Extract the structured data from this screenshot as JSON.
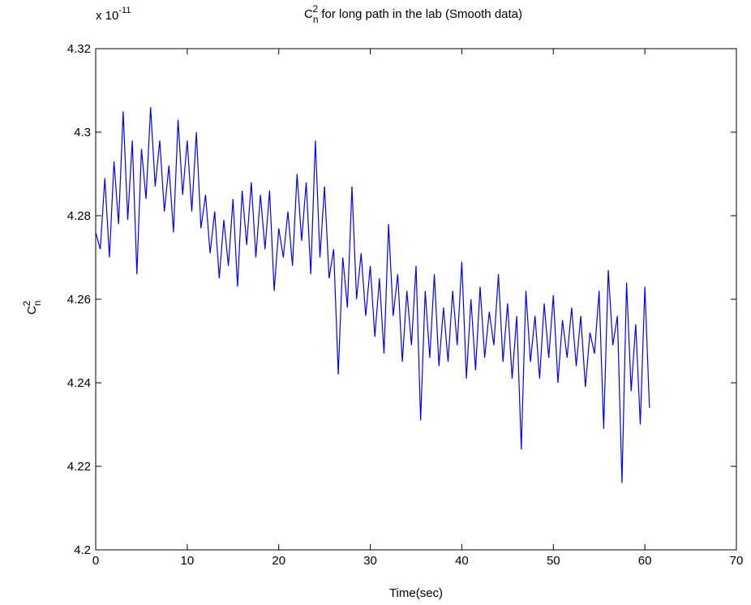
{
  "chart_data": {
    "type": "line",
    "title": {
      "symbol": "C",
      "sub": "n",
      "sup": "2",
      "text": " for long path in the lab (Smooth data)"
    },
    "y_label": {
      "symbol": "C",
      "sub": "n",
      "sup": "2"
    },
    "x_label": "Time(sec)",
    "y_exponent": {
      "base": "x 10",
      "power": "-11"
    },
    "color": "#0000ff",
    "xlim": [
      0,
      70
    ],
    "xticks": [
      0,
      10,
      20,
      30,
      40,
      50,
      60,
      70
    ],
    "ylim": [
      4.2,
      4.32
    ],
    "yticks": [
      4.2,
      4.22,
      4.24,
      4.26,
      4.28,
      4.3,
      4.32
    ],
    "x": [
      0,
      0.5,
      1,
      1.5,
      2,
      2.5,
      3,
      3.5,
      4,
      4.5,
      5,
      5.5,
      6,
      6.5,
      7,
      7.5,
      8,
      8.5,
      9,
      9.5,
      10,
      10.5,
      11,
      11.5,
      12,
      12.5,
      13,
      13.5,
      14,
      14.5,
      15,
      15.5,
      16,
      16.5,
      17,
      17.5,
      18,
      18.5,
      19,
      19.5,
      20,
      20.5,
      21,
      21.5,
      22,
      22.5,
      23,
      23.5,
      24,
      24.5,
      25,
      25.5,
      26,
      26.5,
      27,
      27.5,
      28,
      28.5,
      29,
      29.5,
      30,
      30.5,
      31,
      31.5,
      32,
      32.5,
      33,
      33.5,
      34,
      34.5,
      35,
      35.5,
      36,
      36.5,
      37,
      37.5,
      38,
      38.5,
      39,
      39.5,
      40,
      40.5,
      41,
      41.5,
      42,
      42.5,
      43,
      43.5,
      44,
      44.5,
      45,
      45.5,
      46,
      46.5,
      47,
      47.5,
      48,
      48.5,
      49,
      49.5,
      50,
      50.5,
      51,
      51.5,
      52,
      52.5,
      53,
      53.5,
      54,
      54.5,
      55,
      55.5,
      56,
      56.5,
      57,
      57.5,
      58,
      58.5,
      59,
      59.5,
      60,
      60.5
    ],
    "values": [
      4.276,
      4.272,
      4.289,
      4.27,
      4.293,
      4.278,
      4.305,
      4.279,
      4.298,
      4.266,
      4.296,
      4.284,
      4.306,
      4.287,
      4.298,
      4.281,
      4.292,
      4.276,
      4.303,
      4.285,
      4.298,
      4.281,
      4.3,
      4.277,
      4.285,
      4.271,
      4.281,
      4.265,
      4.279,
      4.268,
      4.284,
      4.263,
      4.286,
      4.273,
      4.288,
      4.27,
      4.285,
      4.272,
      4.286,
      4.262,
      4.277,
      4.27,
      4.281,
      4.268,
      4.29,
      4.274,
      4.288,
      4.266,
      4.298,
      4.27,
      4.287,
      4.265,
      4.272,
      4.242,
      4.27,
      4.258,
      4.287,
      4.26,
      4.271,
      4.256,
      4.268,
      4.251,
      4.265,
      4.247,
      4.278,
      4.256,
      4.266,
      4.245,
      4.262,
      4.249,
      4.268,
      4.231,
      4.262,
      4.246,
      4.266,
      4.244,
      4.258,
      4.245,
      4.262,
      4.249,
      4.269,
      4.241,
      4.26,
      4.243,
      4.263,
      4.246,
      4.257,
      4.249,
      4.266,
      4.245,
      4.259,
      4.241,
      4.256,
      4.224,
      4.262,
      4.245,
      4.256,
      4.241,
      4.259,
      4.246,
      4.261,
      4.24,
      4.255,
      4.246,
      4.258,
      4.244,
      4.256,
      4.239,
      4.252,
      4.247,
      4.262,
      4.229,
      4.267,
      4.249,
      4.256,
      4.216,
      4.264,
      4.238,
      4.254,
      4.23,
      4.263,
      4.234
    ]
  }
}
